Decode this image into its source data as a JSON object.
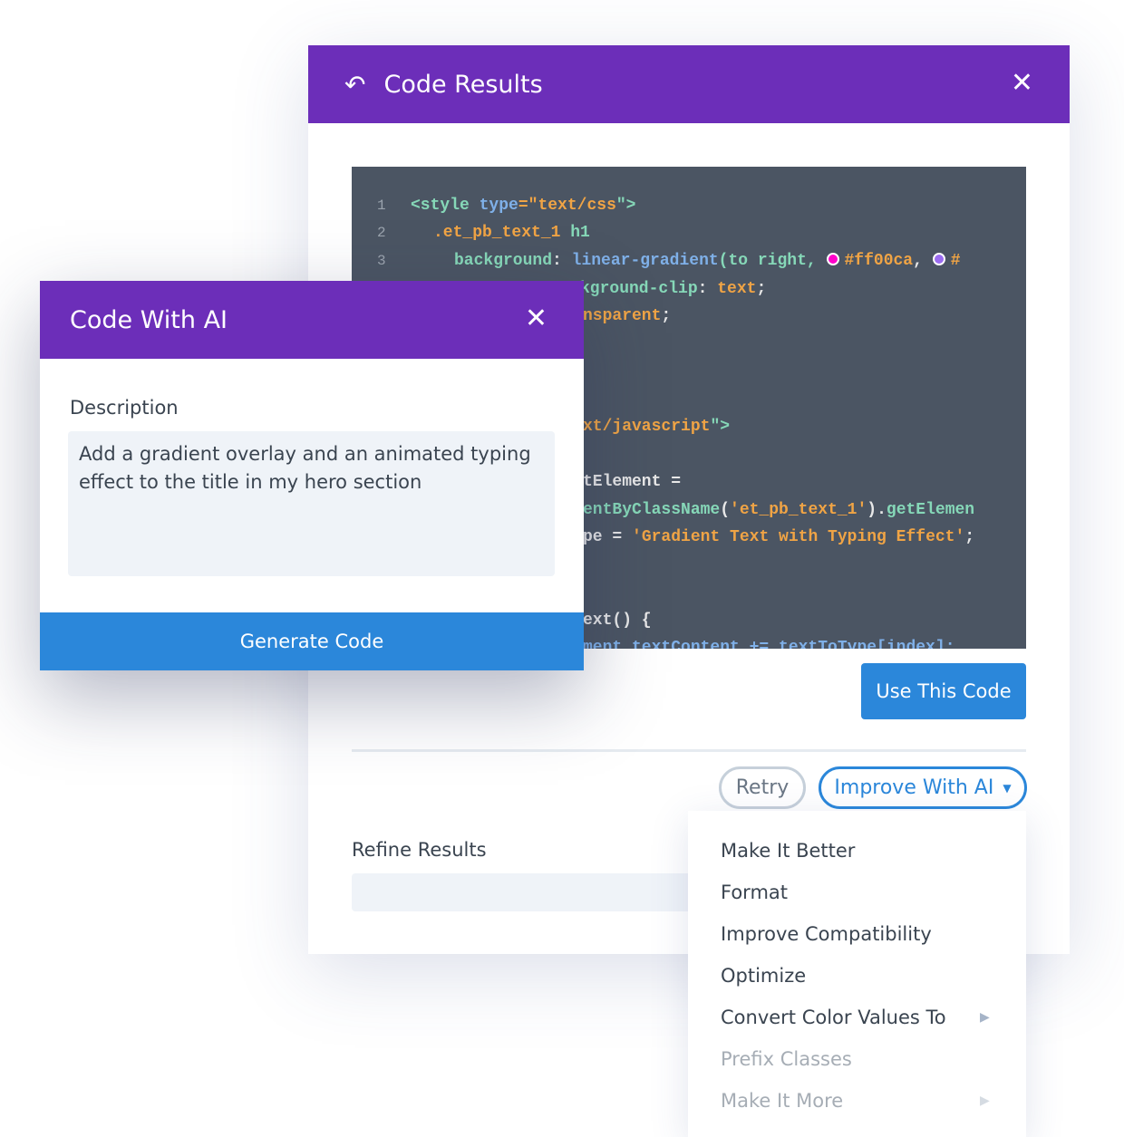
{
  "results_modal": {
    "title": "Code Results",
    "back_icon": "undo-arrow-icon",
    "close_icon": "close-icon",
    "code": {
      "line_numbers": [
        "1",
        "2",
        "3"
      ],
      "l1": [
        "<style ",
        "type",
        "=\"",
        "text/css",
        "\">"
      ],
      "l2": [
        ".et_pb_text_1 ",
        "h1"
      ],
      "l3": [
        "background",
        ": ",
        "linear-gradient",
        "(to right, ",
        "#ff00ca",
        ", ",
        "#"
      ],
      "l4": [
        "kground-clip",
        ": ",
        "text",
        ";"
      ],
      "l5": [
        "nsparent",
        ";"
      ],
      "l8": [
        "xt/javascript",
        "\">"
      ],
      "l10": [
        "tElement ="
      ],
      "l11": [
        "entByClassName",
        "(",
        "'et_pb_text_1'",
        ").",
        "getElemen"
      ],
      "l12": [
        "pe = ",
        "'Gradient Text with Typing Effect'",
        ";"
      ],
      "l15": [
        "ext() {"
      ],
      "l16": [
        "ment.textContent += textToType[index];"
      ],
      "swatch_colors": [
        "#ff00ca",
        "#9b6cf0"
      ]
    },
    "use_button": "Use This Code",
    "retry_button": "Retry",
    "improve_button": "Improve With AI",
    "refine_label": "Refine Results",
    "menu": [
      "Make It Better",
      "Format",
      "Improve Compatibility",
      "Optimize",
      "Convert Color Values To",
      "Prefix Classes",
      "Make It More"
    ]
  },
  "ai_modal": {
    "title": "Code With AI",
    "description_label": "Description",
    "description_value": "Add a gradient overlay and an animated typing effect to the title in my hero section",
    "generate_button": "Generate Code"
  },
  "colors": {
    "header": "#6c2eb9",
    "accent": "#2b87da",
    "editor_bg": "#4b5563"
  }
}
